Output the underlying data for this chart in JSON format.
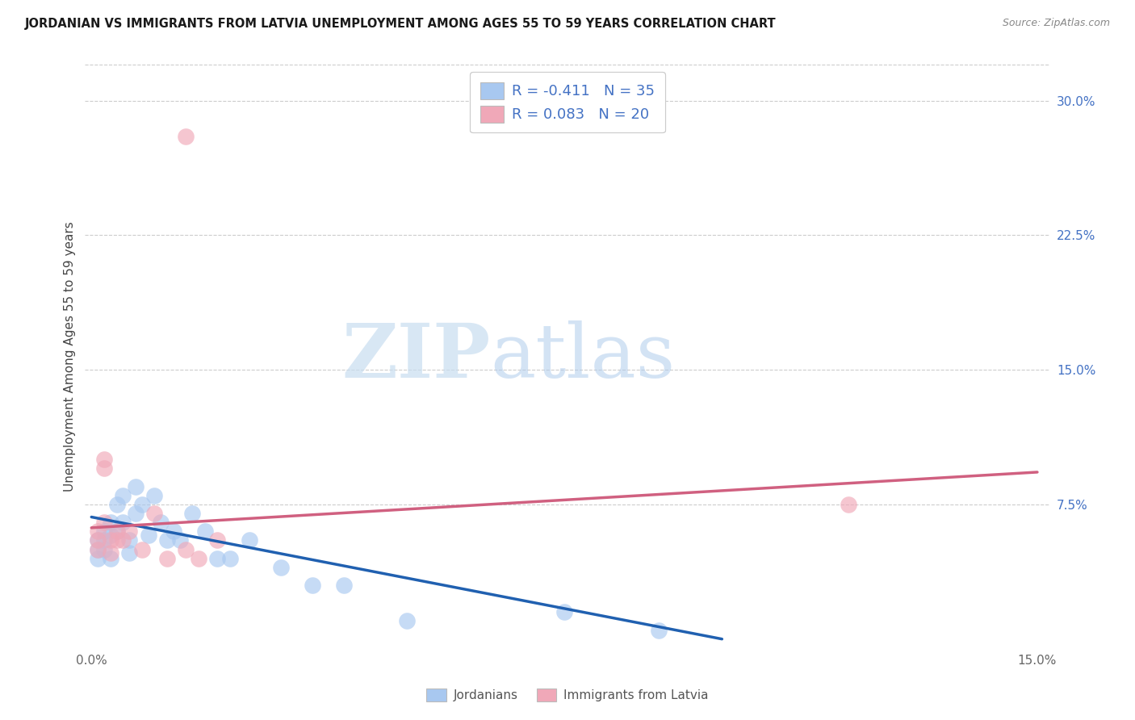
{
  "title": "JORDANIAN VS IMMIGRANTS FROM LATVIA UNEMPLOYMENT AMONG AGES 55 TO 59 YEARS CORRELATION CHART",
  "source": "Source: ZipAtlas.com",
  "ylabel": "Unemployment Among Ages 55 to 59 years",
  "xlim": [
    -0.001,
    0.152
  ],
  "ylim": [
    -0.005,
    0.32
  ],
  "xtick_positions": [
    0.0,
    0.15
  ],
  "xtick_labels": [
    "0.0%",
    "15.0%"
  ],
  "yticks_right": [
    0.075,
    0.15,
    0.225,
    0.3
  ],
  "ytick_right_labels": [
    "7.5%",
    "15.0%",
    "22.5%",
    "30.0%"
  ],
  "legend_r1": "R = -0.411   N = 35",
  "legend_r2": "R = 0.083   N = 20",
  "legend_label1": "Jordanians",
  "legend_label2": "Immigrants from Latvia",
  "blue_color": "#a8c8f0",
  "pink_color": "#f0a8b8",
  "blue_line_color": "#2060b0",
  "pink_line_color": "#d06080",
  "watermark_zip": "ZIP",
  "watermark_atlas": "atlas",
  "blue_x": [
    0.001,
    0.001,
    0.001,
    0.002,
    0.002,
    0.002,
    0.003,
    0.003,
    0.003,
    0.004,
    0.004,
    0.005,
    0.005,
    0.006,
    0.006,
    0.007,
    0.007,
    0.008,
    0.009,
    0.01,
    0.011,
    0.012,
    0.013,
    0.014,
    0.016,
    0.018,
    0.02,
    0.022,
    0.025,
    0.03,
    0.035,
    0.04,
    0.05,
    0.075,
    0.09
  ],
  "blue_y": [
    0.055,
    0.05,
    0.045,
    0.06,
    0.055,
    0.05,
    0.065,
    0.058,
    0.045,
    0.075,
    0.06,
    0.08,
    0.065,
    0.055,
    0.048,
    0.085,
    0.07,
    0.075,
    0.058,
    0.08,
    0.065,
    0.055,
    0.06,
    0.055,
    0.07,
    0.06,
    0.045,
    0.045,
    0.055,
    0.04,
    0.03,
    0.03,
    0.01,
    0.015,
    0.005
  ],
  "pink_x": [
    0.001,
    0.001,
    0.001,
    0.002,
    0.002,
    0.002,
    0.003,
    0.003,
    0.004,
    0.004,
    0.005,
    0.006,
    0.008,
    0.01,
    0.012,
    0.015,
    0.017,
    0.02,
    0.12,
    0.015
  ],
  "pink_y": [
    0.06,
    0.055,
    0.05,
    0.1,
    0.095,
    0.065,
    0.055,
    0.048,
    0.06,
    0.055,
    0.055,
    0.06,
    0.05,
    0.07,
    0.045,
    0.05,
    0.045,
    0.055,
    0.075,
    0.28
  ],
  "blue_trend": [
    0.0,
    0.1
  ],
  "blue_trend_y": [
    0.068,
    0.0
  ],
  "pink_trend": [
    0.0,
    0.15
  ],
  "pink_trend_y": [
    0.062,
    0.093
  ]
}
